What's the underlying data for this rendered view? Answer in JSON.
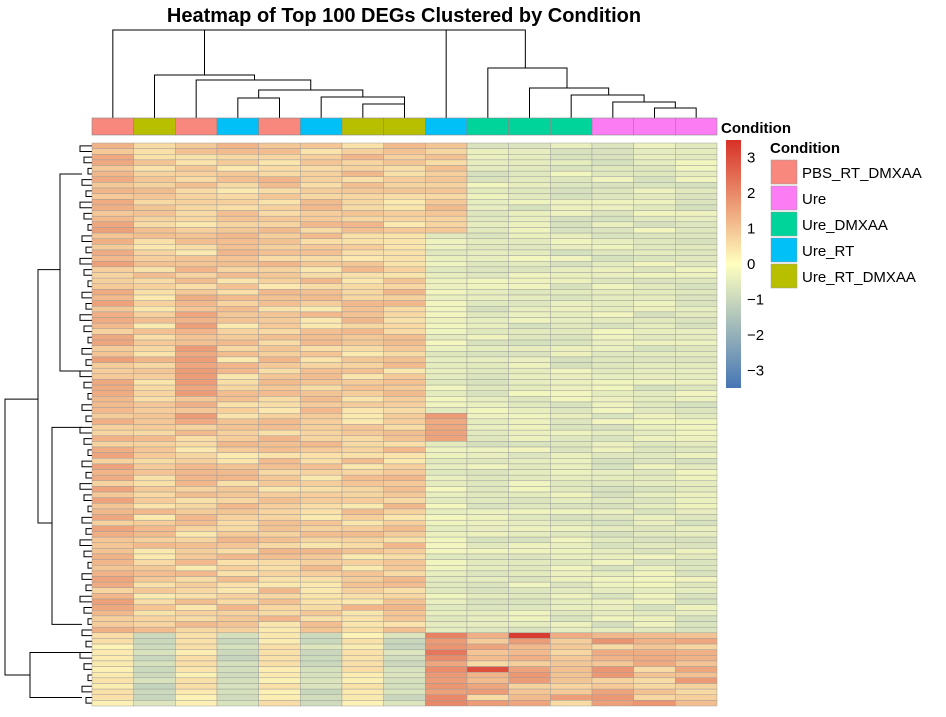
{
  "chart_data": {
    "type": "heatmap",
    "title": "Heatmap of Top 100 DEGs Clustered by Condition",
    "annotation": {
      "name": "Condition",
      "columns": [
        "PBS_RT_DMXAA",
        "Ure_RT_DMXAA",
        "PBS_RT_DMXAA",
        "Ure_RT",
        "PBS_RT_DMXAA",
        "Ure_RT",
        "Ure_RT_DMXAA",
        "Ure_RT_DMXAA",
        "Ure_RT",
        "Ure_DMXAA",
        "Ure_DMXAA",
        "Ure_DMXAA",
        "Ure",
        "Ure",
        "Ure"
      ]
    },
    "legend": {
      "title": "Condition",
      "items": [
        {
          "label": "PBS_RT_DMXAA",
          "color": "#F8877D"
        },
        {
          "label": "Ure",
          "color": "#FC7CF4"
        },
        {
          "label": "Ure_DMXAA",
          "color": "#00D49A"
        },
        {
          "label": "Ure_RT",
          "color": "#00C0F8"
        },
        {
          "label": "Ure_RT_DMXAA",
          "color": "#B8BF00"
        }
      ]
    },
    "colorbar": {
      "title": "Condition",
      "range": [
        -3.5,
        3.5
      ],
      "ticks": [
        3,
        2,
        1,
        0,
        -1,
        -2,
        -3
      ],
      "colors": [
        "#4575B4",
        "#FFFFBF",
        "#D73027"
      ]
    },
    "n_rows": 100,
    "n_cols": 15
  }
}
